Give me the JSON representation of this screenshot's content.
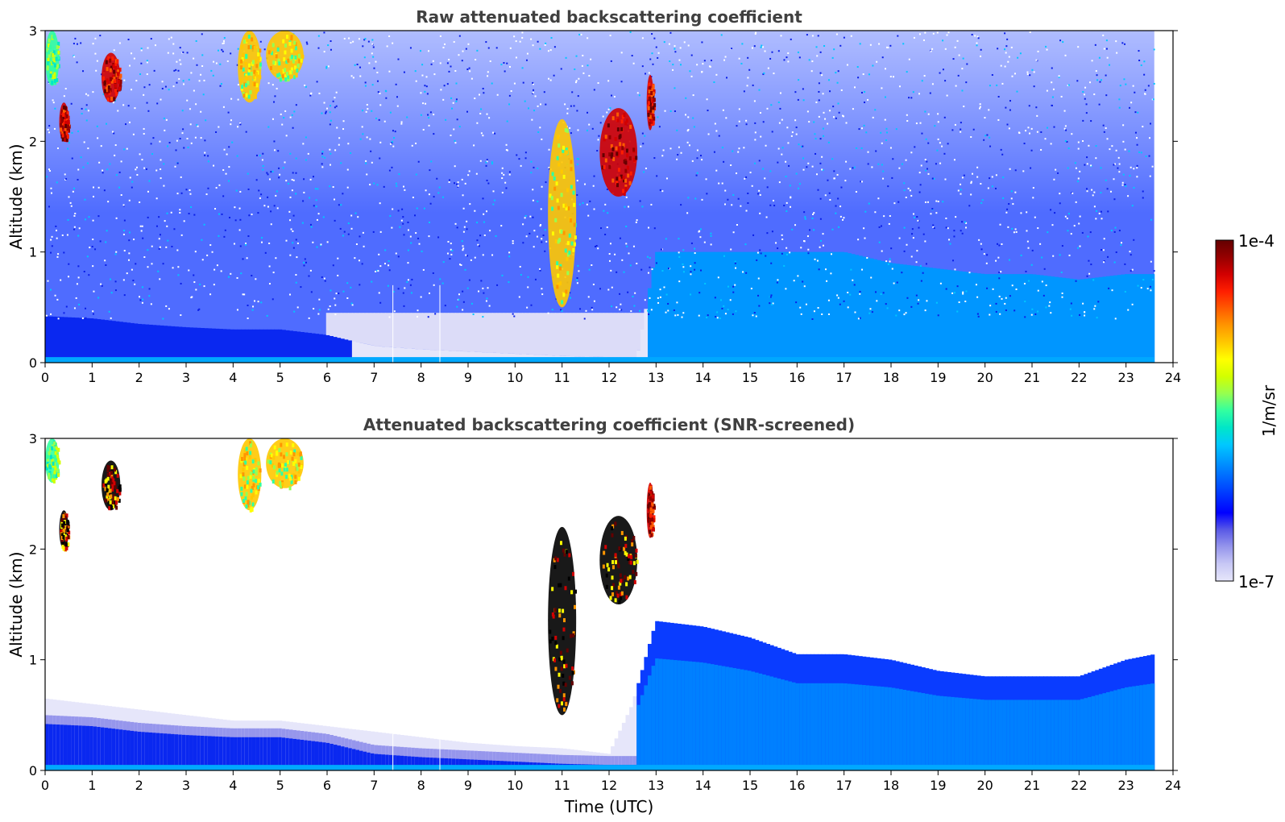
{
  "chart_data": [
    {
      "type": "heatmap",
      "title": "Raw attenuated backscattering coefficient",
      "xlabel": "",
      "ylabel": "Altitude (km)",
      "xlim": [
        0,
        24
      ],
      "ylim": [
        0,
        3
      ],
      "x_ticks": [
        0,
        1,
        2,
        3,
        4,
        5,
        6,
        7,
        8,
        9,
        10,
        11,
        12,
        13,
        14,
        15,
        16,
        17,
        18,
        19,
        20,
        21,
        22,
        23,
        24
      ],
      "y_ticks": [
        0,
        1,
        2,
        3
      ],
      "x_tick_labels": [
        "0",
        "1",
        "2",
        "3",
        "4",
        "5",
        "6",
        "7",
        "8",
        "9",
        "10",
        "11",
        "12",
        "13",
        "14",
        "15",
        "16",
        "17",
        "18",
        "19",
        "20",
        "21",
        "22",
        "23",
        "24"
      ],
      "y_tick_labels": [
        "0",
        "1",
        "2",
        "3"
      ],
      "data_end_time": 23.6,
      "boundary_layer_top_km": [
        [
          0,
          0.42
        ],
        [
          1,
          0.4
        ],
        [
          2,
          0.35
        ],
        [
          3,
          0.32
        ],
        [
          4,
          0.3
        ],
        [
          5,
          0.3
        ],
        [
          6,
          0.25
        ],
        [
          7,
          0.15
        ],
        [
          8,
          0.12
        ],
        [
          9,
          0.1
        ],
        [
          10,
          0.08
        ],
        [
          11,
          0.06
        ],
        [
          12,
          0.05
        ],
        [
          12.6,
          0.05
        ],
        [
          13,
          1.0
        ],
        [
          14,
          1.0
        ],
        [
          15,
          1.0
        ],
        [
          16,
          1.0
        ],
        [
          17,
          1.0
        ],
        [
          18,
          0.9
        ],
        [
          19,
          0.85
        ],
        [
          20,
          0.8
        ],
        [
          21,
          0.8
        ],
        [
          22,
          0.75
        ],
        [
          23,
          0.8
        ],
        [
          23.6,
          0.8
        ]
      ],
      "cloud_features": [
        {
          "t0": 0.0,
          "t1": 0.3,
          "z0": 2.5,
          "z1": 3.0,
          "level": "medium"
        },
        {
          "t0": 0.3,
          "t1": 0.5,
          "z0": 2.0,
          "z1": 2.35,
          "level": "high"
        },
        {
          "t0": 1.2,
          "t1": 1.6,
          "z0": 2.35,
          "z1": 2.8,
          "level": "high"
        },
        {
          "t0": 4.1,
          "t1": 4.6,
          "z0": 2.35,
          "z1": 3.0,
          "level": "medium-high"
        },
        {
          "t0": 4.7,
          "t1": 5.5,
          "z0": 2.55,
          "z1": 3.0,
          "level": "medium-high"
        },
        {
          "t0": 10.7,
          "t1": 11.3,
          "z0": 0.5,
          "z1": 2.2,
          "level": "medium-high"
        },
        {
          "t0": 11.8,
          "t1": 12.6,
          "z0": 1.5,
          "z1": 2.3,
          "level": "high"
        },
        {
          "t0": 12.8,
          "t1": 12.95,
          "z0": 2.1,
          "z1": 2.6,
          "level": "high"
        }
      ]
    },
    {
      "type": "heatmap",
      "title": "Attenuated backscattering coefficient (SNR-screened)",
      "xlabel": "Time (UTC)",
      "ylabel": "Altitude (km)",
      "xlim": [
        0,
        24
      ],
      "ylim": [
        0,
        3
      ],
      "x_ticks": [
        0,
        1,
        2,
        3,
        4,
        5,
        6,
        7,
        8,
        9,
        10,
        11,
        12,
        13,
        14,
        15,
        16,
        17,
        18,
        19,
        20,
        21,
        22,
        23,
        24
      ],
      "y_ticks": [
        0,
        1,
        2,
        3
      ],
      "x_tick_labels": [
        "0",
        "1",
        "2",
        "3",
        "4",
        "5",
        "6",
        "7",
        "8",
        "9",
        "10",
        "11",
        "12",
        "13",
        "14",
        "15",
        "16",
        "17",
        "18",
        "19",
        "20",
        "21",
        "22",
        "23",
        "24"
      ],
      "y_tick_labels": [
        "0",
        "1",
        "2",
        "3"
      ],
      "data_end_time": 23.6,
      "screened_top_km": [
        [
          0,
          0.65
        ],
        [
          1,
          0.6
        ],
        [
          2,
          0.55
        ],
        [
          3,
          0.5
        ],
        [
          4,
          0.45
        ],
        [
          5,
          0.45
        ],
        [
          6,
          0.4
        ],
        [
          7,
          0.35
        ],
        [
          8,
          0.3
        ],
        [
          9,
          0.25
        ],
        [
          10,
          0.22
        ],
        [
          11,
          0.2
        ],
        [
          12,
          0.15
        ],
        [
          12.5,
          0.6
        ],
        [
          13,
          1.35
        ],
        [
          14,
          1.3
        ],
        [
          15,
          1.2
        ],
        [
          16,
          1.05
        ],
        [
          17,
          1.05
        ],
        [
          18,
          1.0
        ],
        [
          19,
          0.9
        ],
        [
          20,
          0.85
        ],
        [
          21,
          0.85
        ],
        [
          22,
          0.85
        ],
        [
          23,
          1.0
        ],
        [
          23.6,
          1.05
        ]
      ],
      "cloud_features": [
        {
          "t0": 0.0,
          "t1": 0.3,
          "z0": 2.6,
          "z1": 3.0,
          "level": "medium"
        },
        {
          "t0": 0.3,
          "t1": 0.5,
          "z0": 2.0,
          "z1": 2.35,
          "level": "very-high"
        },
        {
          "t0": 1.2,
          "t1": 1.6,
          "z0": 2.35,
          "z1": 2.8,
          "level": "very-high"
        },
        {
          "t0": 4.1,
          "t1": 4.6,
          "z0": 2.35,
          "z1": 3.0,
          "level": "medium-high"
        },
        {
          "t0": 4.7,
          "t1": 5.5,
          "z0": 2.55,
          "z1": 3.0,
          "level": "medium-high"
        },
        {
          "t0": 10.7,
          "t1": 11.3,
          "z0": 0.5,
          "z1": 2.2,
          "level": "very-high"
        },
        {
          "t0": 11.8,
          "t1": 12.6,
          "z0": 1.5,
          "z1": 2.3,
          "level": "very-high"
        },
        {
          "t0": 12.8,
          "t1": 12.95,
          "z0": 2.1,
          "z1": 2.6,
          "level": "high"
        }
      ]
    }
  ],
  "colorbar": {
    "label": "1/m/sr",
    "min_label": "1e-7",
    "max_label": "1e-4",
    "scale": "log",
    "colormap": [
      "#e6e6fa",
      "#c8c8f5",
      "#9696ec",
      "#5a5ae6",
      "#0000ff",
      "#0032ff",
      "#0064ff",
      "#0096ff",
      "#00c8ff",
      "#00e6c8",
      "#32ffa0",
      "#96ff50",
      "#d2ff00",
      "#ffff00",
      "#ffc800",
      "#ff9600",
      "#ff5a00",
      "#ff1e00",
      "#d20000",
      "#960000",
      "#640000"
    ]
  },
  "colors": {
    "title": "#404040",
    "background": "#ffffff",
    "noise_blue": "#1e3cff",
    "lavender": "#e6e6fa",
    "bl_blue": "#0a28f0",
    "bl_light": "#0096ff"
  }
}
